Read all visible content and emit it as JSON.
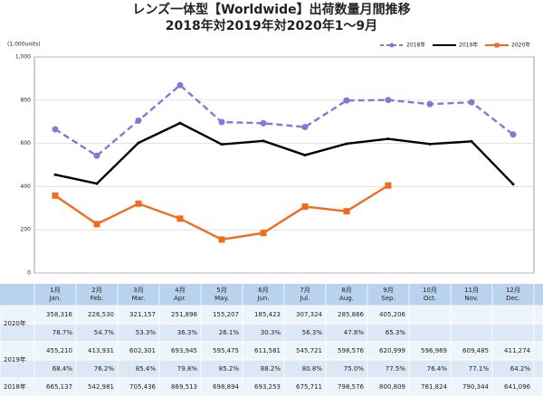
{
  "chart_data": {
    "type": "line",
    "title": "レンズ一体型【Worldwide】出荷数量月間推移",
    "subtitle": "2018年対2019年対2020年1～9月",
    "y_unit": "(1,000units)",
    "categories": [
      "1月 Jan.",
      "2月 Feb.",
      "3月 Mar.",
      "4月 Apr.",
      "5月 May.",
      "6月 Jun.",
      "7月 Jul.",
      "8月 Aug.",
      "9月 Sep.",
      "10月 Oct.",
      "11月 Nov.",
      "12月 Dec."
    ],
    "series": [
      {
        "name": "2018年",
        "color": "#7c7cd8",
        "dashed": true,
        "marker": "circle",
        "values": [
          665.137,
          542.981,
          705.436,
          869.513,
          698.894,
          693.253,
          675.711,
          798.576,
          800.809,
          781.824,
          790.344,
          641.096
        ]
      },
      {
        "name": "2019年",
        "color": "#000000",
        "dashed": false,
        "marker": "none",
        "values": [
          455.21,
          413.931,
          602.301,
          693.945,
          595.475,
          611.581,
          545.721,
          598.576,
          620.999,
          596.969,
          609.485,
          411.274
        ]
      },
      {
        "name": "2020年",
        "color": "#f26b1d",
        "dashed": false,
        "marker": "square",
        "values": [
          358.316,
          226.53,
          321.157,
          251.898,
          155.207,
          185.423,
          307.324,
          285.866,
          405.206,
          null,
          null,
          null
        ]
      }
    ],
    "ylim": [
      0,
      1000
    ],
    "yticks": [
      0,
      200,
      400,
      600,
      800,
      {
        "value": 1000,
        "label": "1,000"
      }
    ],
    "grid": true,
    "legend": "top-right"
  },
  "table": {
    "header": [
      {
        "ja": "1月",
        "en": "Jan."
      },
      {
        "ja": "2月",
        "en": "Feb."
      },
      {
        "ja": "3月",
        "en": "Mar."
      },
      {
        "ja": "4月",
        "en": "Apr."
      },
      {
        "ja": "5月",
        "en": "May."
      },
      {
        "ja": "6月",
        "en": "Jun."
      },
      {
        "ja": "7月",
        "en": "Jul."
      },
      {
        "ja": "8月",
        "en": "Aug."
      },
      {
        "ja": "9月",
        "en": "Sep."
      },
      {
        "ja": "10月",
        "en": "Oct."
      },
      {
        "ja": "11月",
        "en": "Nov."
      },
      {
        "ja": "12月",
        "en": "Dec."
      }
    ],
    "rows": [
      {
        "label": "2020年",
        "cells": [
          "358,316",
          "226,530",
          "321,157",
          "251,898",
          "155,207",
          "185,423",
          "307,324",
          "285,866",
          "405,206"
        ]
      },
      {
        "cells": [
          "78.7%",
          "54.7%",
          "53.3%",
          "36.3%",
          "26.1%",
          "30.3%",
          "56.3%",
          "47.8%",
          "65.3%"
        ]
      },
      {
        "label": "2019年",
        "cells": [
          "455,210",
          "413,931",
          "602,301",
          "693,945",
          "595,475",
          "611,581",
          "545,721",
          "598,576",
          "620,999",
          "596,969",
          "609,485",
          "411,274"
        ]
      },
      {
        "cells": [
          "68.4%",
          "76.2%",
          "85.4%",
          "79.8%",
          "85.2%",
          "88.2%",
          "80.8%",
          "75.0%",
          "77.5%",
          "76.4%",
          "77.1%",
          "64.2%"
        ]
      },
      {
        "label": "2018年",
        "cells": [
          "665,137",
          "542,981",
          "705,436",
          "869,513",
          "698,894",
          "693,253",
          "675,711",
          "798,576",
          "800,809",
          "781,824",
          "790,344",
          "641,096"
        ]
      }
    ]
  }
}
